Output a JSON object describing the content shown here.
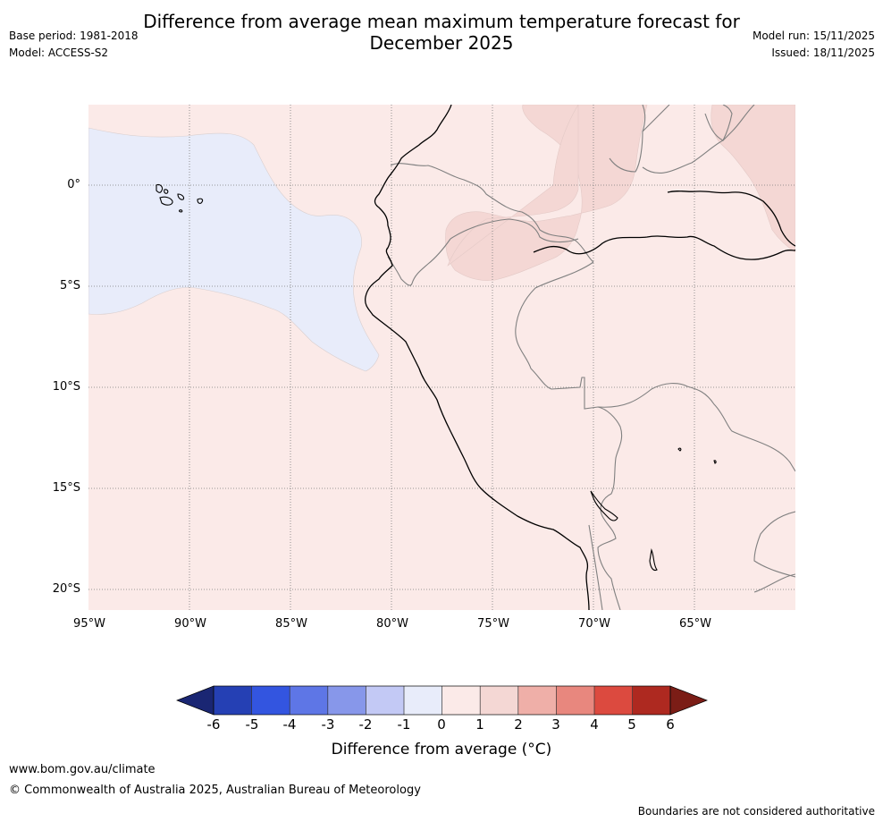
{
  "header": {
    "title_line1": "Difference from average mean maximum temperature forecast for",
    "title_line2": "December 2025",
    "base_period": "Base period: 1981-2018",
    "model": "Model: ACCESS-S2",
    "model_run": "Model run: 15/11/2025",
    "issued": "Issued: 18/11/2025"
  },
  "map": {
    "lat_ticks": [
      "0°",
      "5°S",
      "10°S",
      "15°S",
      "20°S"
    ],
    "lon_ticks": [
      "95°W",
      "90°W",
      "85°W",
      "80°W",
      "75°W",
      "70°W",
      "65°W"
    ],
    "colors": {
      "ocean_cool": "#e8ecfa",
      "warm_0_1": "#fbeae8",
      "warm_1_2": "#f4d7d4",
      "coast": "#000000",
      "border": "#808080",
      "grid": "#7a7a7a"
    }
  },
  "colorbar": {
    "tick_labels": [
      "-6",
      "-5",
      "-4",
      "-3",
      "-2",
      "-1",
      "0",
      "1",
      "2",
      "3",
      "4",
      "5",
      "6"
    ],
    "colors": [
      "#1a2673",
      "#2540b4",
      "#3355e0",
      "#5e76e6",
      "#8797ea",
      "#c3c9f5",
      "#e8ecfa",
      "#fbeae8",
      "#f4d7d4",
      "#efafa8",
      "#e8877e",
      "#dc4a3f",
      "#ae2920",
      "#7b1d16"
    ],
    "label": "Difference from average (°C)"
  },
  "footer": {
    "url": "www.bom.gov.au/climate",
    "copyright": "© Commonwealth of Australia 2025, Australian Bureau of Meteorology",
    "disclaimer": "Boundaries are not considered authoritative"
  }
}
